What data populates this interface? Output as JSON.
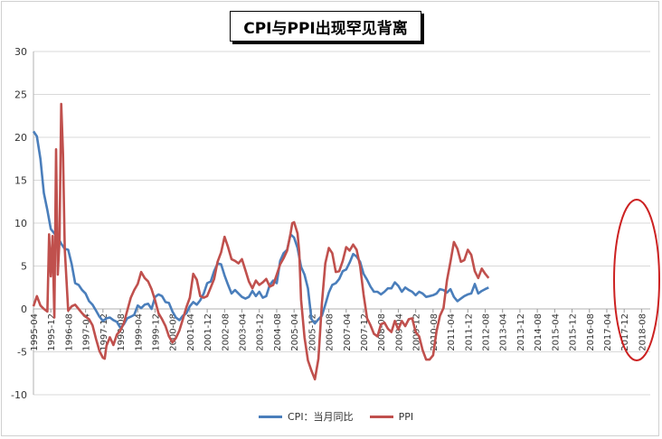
{
  "chart_data": {
    "type": "line",
    "title": "CPI与PPI出现罕见背离",
    "ylim": [
      -10,
      30
    ],
    "yticks": [
      30,
      25,
      20,
      15,
      10,
      5,
      0,
      -5,
      -10
    ],
    "grid": true,
    "legend_position": "bottom",
    "x_tick_labels": [
      "1995-04",
      "1995-12",
      "1996-08",
      "1997-04",
      "1997-12",
      "1998-08",
      "1999-04",
      "1999-12",
      "2000-08",
      "2001-04",
      "2001-12",
      "2002-08",
      "2003-04",
      "2003-12",
      "2004-08",
      "2005-04",
      "2005-12",
      "2006-08",
      "2007-04",
      "2007-12",
      "2008-08",
      "2009-04",
      "2009-12",
      "2010-08",
      "2011-04",
      "2011-12",
      "2012-08",
      "2013-04",
      "2013-12",
      "2014-08",
      "2015-04",
      "2015-12",
      "2016-08",
      "2017-04",
      "2017-12",
      "2018-08"
    ],
    "series": [
      {
        "name": "CPI：当月同比",
        "color": "#4a7ebb",
        "points": [
          [
            0,
            20.7
          ],
          [
            0.2,
            20.1
          ],
          [
            0.4,
            17.5
          ],
          [
            0.6,
            13.5
          ],
          [
            0.8,
            11.5
          ],
          [
            1,
            9.3
          ],
          [
            1.2,
            8.8
          ],
          [
            1.4,
            8.3
          ],
          [
            1.6,
            7.6
          ],
          [
            1.8,
            7.0
          ],
          [
            2,
            6.9
          ],
          [
            2.2,
            5.2
          ],
          [
            2.4,
            3.0
          ],
          [
            2.6,
            2.8
          ],
          [
            2.8,
            2.2
          ],
          [
            3,
            1.8
          ],
          [
            3.2,
            0.9
          ],
          [
            3.4,
            0.5
          ],
          [
            3.6,
            -0.2
          ],
          [
            3.8,
            -0.9
          ],
          [
            4,
            -1.4
          ],
          [
            4.2,
            -1.1
          ],
          [
            4.4,
            -1.0
          ],
          [
            4.6,
            -1.3
          ],
          [
            4.8,
            -1.5
          ],
          [
            5,
            -2.2
          ],
          [
            5.2,
            -1.8
          ],
          [
            5.4,
            -1.1
          ],
          [
            5.6,
            -0.9
          ],
          [
            5.8,
            -0.7
          ],
          [
            6,
            0.4
          ],
          [
            6.2,
            0.1
          ],
          [
            6.4,
            0.5
          ],
          [
            6.6,
            0.6
          ],
          [
            6.8,
            0.0
          ],
          [
            7,
            1.4
          ],
          [
            7.2,
            1.7
          ],
          [
            7.4,
            1.5
          ],
          [
            7.6,
            0.8
          ],
          [
            7.8,
            0.7
          ],
          [
            8,
            -0.3
          ],
          [
            8.2,
            -1.0
          ],
          [
            8.4,
            -1.3
          ],
          [
            8.6,
            -0.8
          ],
          [
            8.8,
            -0.5
          ],
          [
            9,
            0.3
          ],
          [
            9.2,
            0.8
          ],
          [
            9.4,
            0.5
          ],
          [
            9.6,
            1.0
          ],
          [
            9.8,
            1.8
          ],
          [
            10,
            3.0
          ],
          [
            10.2,
            3.2
          ],
          [
            10.4,
            4.4
          ],
          [
            10.6,
            5.3
          ],
          [
            10.8,
            5.2
          ],
          [
            11,
            3.9
          ],
          [
            11.2,
            2.8
          ],
          [
            11.4,
            1.8
          ],
          [
            11.6,
            2.2
          ],
          [
            11.8,
            1.8
          ],
          [
            12,
            1.4
          ],
          [
            12.2,
            1.2
          ],
          [
            12.4,
            1.4
          ],
          [
            12.6,
            2.1
          ],
          [
            12.8,
            1.5
          ],
          [
            13,
            2.0
          ],
          [
            13.2,
            1.3
          ],
          [
            13.4,
            1.5
          ],
          [
            13.6,
            2.8
          ],
          [
            13.8,
            3.3
          ],
          [
            14,
            3.0
          ],
          [
            14.2,
            5.6
          ],
          [
            14.4,
            6.5
          ],
          [
            14.6,
            6.9
          ],
          [
            14.8,
            8.7
          ],
          [
            15,
            8.3
          ],
          [
            15.2,
            7.1
          ],
          [
            15.4,
            4.9
          ],
          [
            15.6,
            4.0
          ],
          [
            15.8,
            2.4
          ],
          [
            16,
            -1.2
          ],
          [
            16.2,
            -1.7
          ],
          [
            16.4,
            -1.2
          ],
          [
            16.6,
            -0.8
          ],
          [
            16.8,
            0.5
          ],
          [
            17,
            1.9
          ],
          [
            17.2,
            2.8
          ],
          [
            17.4,
            3.0
          ],
          [
            17.6,
            3.5
          ],
          [
            17.8,
            4.4
          ],
          [
            18,
            4.6
          ],
          [
            18.2,
            5.4
          ],
          [
            18.4,
            6.4
          ],
          [
            18.6,
            6.1
          ],
          [
            18.8,
            5.5
          ],
          [
            19,
            4.1
          ],
          [
            19.2,
            3.4
          ],
          [
            19.4,
            2.6
          ],
          [
            19.6,
            2.0
          ],
          [
            19.8,
            2.0
          ],
          [
            20,
            1.7
          ],
          [
            20.2,
            2.0
          ],
          [
            20.4,
            2.4
          ],
          [
            20.6,
            2.4
          ],
          [
            20.8,
            3.1
          ],
          [
            21,
            2.7
          ],
          [
            21.2,
            2.0
          ],
          [
            21.4,
            2.5
          ],
          [
            21.6,
            2.2
          ],
          [
            21.8,
            2.0
          ],
          [
            22,
            1.6
          ],
          [
            22.2,
            2.0
          ],
          [
            22.4,
            1.8
          ],
          [
            22.6,
            1.4
          ],
          [
            22.8,
            1.5
          ],
          [
            23,
            1.6
          ],
          [
            23.2,
            1.8
          ],
          [
            23.4,
            2.3
          ],
          [
            23.6,
            2.2
          ],
          [
            23.8,
            1.9
          ],
          [
            24,
            2.3
          ],
          [
            24.2,
            1.4
          ],
          [
            24.4,
            0.9
          ],
          [
            24.6,
            1.2
          ],
          [
            24.8,
            1.5
          ],
          [
            25,
            1.7
          ],
          [
            25.2,
            1.8
          ],
          [
            25.4,
            2.9
          ],
          [
            25.6,
            1.8
          ],
          [
            25.8,
            2.1
          ],
          [
            26,
            2.3
          ],
          [
            26.2,
            2.5
          ]
        ]
      },
      {
        "name": "PPI",
        "color": "#c0504d",
        "points": [
          [
            0,
            0.3
          ],
          [
            0.2,
            1.5
          ],
          [
            0.4,
            0.4
          ],
          [
            0.6,
            0.0
          ],
          [
            0.8,
            -0.3
          ],
          [
            0.9,
            8.7
          ],
          [
            1.0,
            3.8
          ],
          [
            1.1,
            8.5
          ],
          [
            1.2,
            -1.0
          ],
          [
            1.3,
            18.6
          ],
          [
            1.4,
            4.0
          ],
          [
            1.5,
            8.0
          ],
          [
            1.6,
            23.9
          ],
          [
            1.7,
            18.0
          ],
          [
            1.8,
            7.0
          ],
          [
            2.0,
            -0.2
          ],
          [
            2.2,
            0.3
          ],
          [
            2.4,
            0.5
          ],
          [
            2.6,
            0.0
          ],
          [
            2.8,
            -0.5
          ],
          [
            3.0,
            -0.9
          ],
          [
            3.2,
            -1.2
          ],
          [
            3.4,
            -1.9
          ],
          [
            3.6,
            -3.5
          ],
          [
            3.8,
            -4.9
          ],
          [
            4.0,
            -5.7
          ],
          [
            4.1,
            -5.8
          ],
          [
            4.2,
            -4.3
          ],
          [
            4.4,
            -3.3
          ],
          [
            4.6,
            -4.2
          ],
          [
            4.8,
            -3.0
          ],
          [
            5.0,
            -2.5
          ],
          [
            5.2,
            -1.7
          ],
          [
            5.4,
            -0.2
          ],
          [
            5.6,
            1.3
          ],
          [
            5.8,
            2.2
          ],
          [
            6.0,
            2.9
          ],
          [
            6.2,
            4.3
          ],
          [
            6.4,
            3.6
          ],
          [
            6.6,
            3.2
          ],
          [
            6.8,
            2.3
          ],
          [
            7.0,
            1.0
          ],
          [
            7.2,
            -0.5
          ],
          [
            7.4,
            -1.2
          ],
          [
            7.6,
            -2.0
          ],
          [
            7.8,
            -3.2
          ],
          [
            8.0,
            -3.9
          ],
          [
            8.2,
            -3.4
          ],
          [
            8.4,
            -2.5
          ],
          [
            8.6,
            -1.2
          ],
          [
            8.8,
            0.2
          ],
          [
            9.0,
            1.3
          ],
          [
            9.2,
            4.1
          ],
          [
            9.4,
            3.4
          ],
          [
            9.6,
            1.5
          ],
          [
            9.8,
            1.3
          ],
          [
            10.0,
            1.5
          ],
          [
            10.2,
            2.5
          ],
          [
            10.4,
            3.5
          ],
          [
            10.6,
            5.5
          ],
          [
            10.8,
            6.6
          ],
          [
            11.0,
            8.4
          ],
          [
            11.2,
            7.2
          ],
          [
            11.4,
            5.8
          ],
          [
            11.6,
            5.6
          ],
          [
            11.8,
            5.3
          ],
          [
            12.0,
            5.8
          ],
          [
            12.2,
            4.5
          ],
          [
            12.4,
            3.2
          ],
          [
            12.6,
            2.4
          ],
          [
            12.8,
            3.3
          ],
          [
            13.0,
            2.8
          ],
          [
            13.2,
            3.1
          ],
          [
            13.4,
            3.5
          ],
          [
            13.6,
            2.6
          ],
          [
            13.8,
            2.8
          ],
          [
            14.0,
            4.0
          ],
          [
            14.2,
            5.2
          ],
          [
            14.4,
            5.9
          ],
          [
            14.6,
            6.8
          ],
          [
            14.8,
            8.8
          ],
          [
            14.9,
            10.0
          ],
          [
            15.0,
            10.1
          ],
          [
            15.2,
            8.8
          ],
          [
            15.3,
            6.6
          ],
          [
            15.4,
            1.1
          ],
          [
            15.6,
            -3.3
          ],
          [
            15.8,
            -6.0
          ],
          [
            16.0,
            -7.2
          ],
          [
            16.2,
            -8.2
          ],
          [
            16.4,
            -5.8
          ],
          [
            16.6,
            0.6
          ],
          [
            16.8,
            5.3
          ],
          [
            17.0,
            7.1
          ],
          [
            17.2,
            6.5
          ],
          [
            17.4,
            4.3
          ],
          [
            17.6,
            4.4
          ],
          [
            17.8,
            5.6
          ],
          [
            18.0,
            7.2
          ],
          [
            18.2,
            6.8
          ],
          [
            18.4,
            7.5
          ],
          [
            18.6,
            6.9
          ],
          [
            18.8,
            5.0
          ],
          [
            19.0,
            1.7
          ],
          [
            19.2,
            -1.1
          ],
          [
            19.4,
            -1.9
          ],
          [
            19.6,
            -2.9
          ],
          [
            19.8,
            -3.2
          ],
          [
            20.0,
            -1.8
          ],
          [
            20.2,
            -1.6
          ],
          [
            20.4,
            -2.3
          ],
          [
            20.6,
            -2.7
          ],
          [
            20.8,
            -1.4
          ],
          [
            21.0,
            -2.4
          ],
          [
            21.2,
            -1.4
          ],
          [
            21.4,
            -2.0
          ],
          [
            21.6,
            -1.2
          ],
          [
            21.8,
            -1.1
          ],
          [
            22.0,
            -2.7
          ],
          [
            22.2,
            -3.2
          ],
          [
            22.4,
            -4.8
          ],
          [
            22.6,
            -5.9
          ],
          [
            22.8,
            -5.9
          ],
          [
            23.0,
            -5.4
          ],
          [
            23.2,
            -2.6
          ],
          [
            23.4,
            -0.8
          ],
          [
            23.6,
            0.1
          ],
          [
            23.8,
            3.3
          ],
          [
            24.0,
            5.5
          ],
          [
            24.2,
            7.8
          ],
          [
            24.4,
            7.0
          ],
          [
            24.6,
            5.5
          ],
          [
            24.8,
            5.7
          ],
          [
            25.0,
            6.9
          ],
          [
            25.2,
            6.3
          ],
          [
            25.4,
            4.4
          ],
          [
            25.6,
            3.6
          ],
          [
            25.8,
            4.7
          ],
          [
            26.0,
            4.1
          ],
          [
            26.2,
            3.6
          ]
        ]
      }
    ]
  }
}
